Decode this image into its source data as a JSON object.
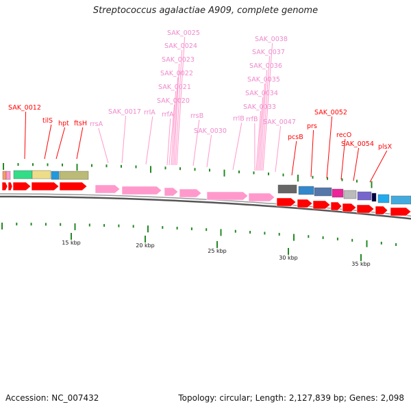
{
  "title": "Streptococcus agalactiae A909, complete genome",
  "footer": {
    "accession": "Accession: NC_007432",
    "summary": "Topology: circular; Length: 2,127,839 bp; Genes: 2,098"
  },
  "colors": {
    "gene_red": "#ff0000",
    "rna_pink": "#ff99cc",
    "rna_label": "#ee88cc",
    "tick_green": "#228822",
    "backbone_grey": "#888888"
  },
  "scale": {
    "unit": "kbp",
    "ticks": [
      "15 kbp",
      "20 kbp",
      "25 kbp",
      "30 kbp",
      "35 kbp"
    ]
  },
  "genes": [
    {
      "label": "SAK_0012",
      "kind": "cds"
    },
    {
      "label": "tilS",
      "kind": "cds"
    },
    {
      "label": "hpt",
      "kind": "cds"
    },
    {
      "label": "ftsH",
      "kind": "cds"
    },
    {
      "label": "rrsA",
      "kind": "rna"
    },
    {
      "label": "SAK_0017",
      "kind": "rna"
    },
    {
      "label": "rrlA",
      "kind": "rna"
    },
    {
      "label": "rrfA",
      "kind": "rna"
    },
    {
      "label": "SAK_0020",
      "kind": "rna"
    },
    {
      "label": "SAK_0021",
      "kind": "rna"
    },
    {
      "label": "SAK_0022",
      "kind": "rna"
    },
    {
      "label": "SAK_0023",
      "kind": "rna"
    },
    {
      "label": "SAK_0024",
      "kind": "rna"
    },
    {
      "label": "SAK_0025",
      "kind": "rna"
    },
    {
      "label": "rrsB",
      "kind": "rna"
    },
    {
      "label": "SAK_0030",
      "kind": "rna"
    },
    {
      "label": "rrlB",
      "kind": "rna"
    },
    {
      "label": "rrfB",
      "kind": "rna"
    },
    {
      "label": "SAK_0033",
      "kind": "rna"
    },
    {
      "label": "SAK_0034",
      "kind": "rna"
    },
    {
      "label": "SAK_0035",
      "kind": "rna"
    },
    {
      "label": "SAK_0036",
      "kind": "rna"
    },
    {
      "label": "SAK_0037",
      "kind": "rna"
    },
    {
      "label": "SAK_0038",
      "kind": "rna"
    },
    {
      "label": "SAK_0047",
      "kind": "rna"
    },
    {
      "label": "pcsB",
      "kind": "cds"
    },
    {
      "label": "prs",
      "kind": "cds"
    },
    {
      "label": "SAK_0052",
      "kind": "cds"
    },
    {
      "label": "recO",
      "kind": "cds"
    },
    {
      "label": "SAK_0054",
      "kind": "cds"
    },
    {
      "label": "plsX",
      "kind": "cds"
    }
  ]
}
